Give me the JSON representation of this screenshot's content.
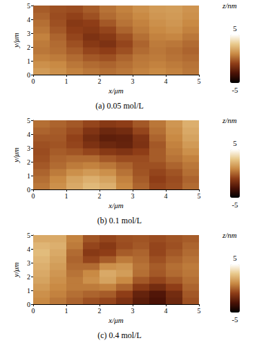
{
  "chart_data": [
    {
      "type": "heatmap",
      "title": "(a) 0.05 mol/L",
      "x_label": "x/μm",
      "y_label": "y/μm",
      "xlim": [
        0,
        5
      ],
      "ylim": [
        0,
        5
      ],
      "xticks": [
        0,
        1,
        2,
        3,
        4,
        5
      ],
      "yticks": [
        0,
        1,
        2,
        3,
        4,
        5
      ],
      "colorbar_label": "z/nm",
      "colorbar_range": [
        -5,
        5
      ],
      "colorbar_ticks": [
        -5,
        5
      ],
      "x": [
        0.25,
        0.75,
        1.25,
        1.75,
        2.25,
        2.75,
        3.25,
        3.75,
        4.25,
        4.75
      ],
      "y": [
        0.25,
        0.75,
        1.25,
        1.75,
        2.25,
        2.75,
        3.25,
        3.75,
        4.25,
        4.75
      ],
      "values": [
        [
          1.5,
          1.2,
          0.8,
          0.5,
          0.3,
          0.5,
          0.8,
          1.0,
          0.8,
          0.5
        ],
        [
          1.2,
          1.0,
          0.5,
          0.2,
          0.0,
          0.3,
          0.6,
          0.8,
          0.6,
          0.4
        ],
        [
          0.8,
          0.6,
          0.2,
          -0.3,
          -0.5,
          0.0,
          0.5,
          0.6,
          0.4,
          0.2
        ],
        [
          0.5,
          0.3,
          -0.2,
          -0.8,
          -1.0,
          -0.5,
          0.2,
          0.5,
          0.3,
          0.0
        ],
        [
          0.6,
          0.2,
          -0.5,
          -1.2,
          -1.5,
          -0.8,
          0.0,
          0.6,
          0.5,
          0.2
        ],
        [
          0.8,
          0.0,
          -0.8,
          -1.5,
          -1.2,
          -0.5,
          0.3,
          0.8,
          0.9,
          0.5
        ],
        [
          0.5,
          -0.3,
          -1.0,
          -1.2,
          -0.8,
          0.0,
          0.6,
          1.0,
          1.2,
          0.8
        ],
        [
          0.3,
          -0.5,
          -1.2,
          -1.0,
          -0.3,
          0.4,
          0.8,
          1.2,
          1.4,
          1.0
        ],
        [
          0.0,
          -0.6,
          -0.9,
          -0.5,
          0.2,
          0.6,
          1.0,
          1.4,
          1.5,
          1.2
        ],
        [
          -0.2,
          -0.5,
          -0.6,
          -0.2,
          0.4,
          0.8,
          1.2,
          1.5,
          1.6,
          1.3
        ]
      ]
    },
    {
      "type": "heatmap",
      "title": "(b) 0.1 mol/L",
      "x_label": "x/μm",
      "y_label": "y/μm",
      "xlim": [
        0,
        5
      ],
      "ylim": [
        0,
        5
      ],
      "xticks": [
        0,
        1,
        2,
        3,
        4,
        5
      ],
      "yticks": [
        0,
        1,
        2,
        3,
        4,
        5
      ],
      "colorbar_label": "z/nm",
      "colorbar_range": [
        -5,
        5
      ],
      "colorbar_ticks": [
        -5,
        5
      ],
      "x": [
        0.25,
        0.75,
        1.25,
        1.75,
        2.25,
        2.75,
        3.25,
        3.75,
        4.25,
        4.75
      ],
      "y": [
        0.25,
        0.75,
        1.25,
        1.75,
        2.25,
        2.75,
        3.25,
        3.75,
        4.25,
        4.75
      ],
      "values": [
        [
          0.5,
          1.2,
          2.0,
          2.5,
          2.2,
          1.0,
          0.0,
          -0.8,
          -0.5,
          0.2
        ],
        [
          0.3,
          1.0,
          1.8,
          2.2,
          1.8,
          0.8,
          -0.2,
          -1.0,
          -0.6,
          0.0
        ],
        [
          0.0,
          0.6,
          1.2,
          1.5,
          1.2,
          0.4,
          -0.4,
          -0.8,
          -0.4,
          0.3
        ],
        [
          -0.3,
          0.2,
          0.6,
          0.8,
          0.5,
          0.0,
          -0.5,
          -0.5,
          0.0,
          0.5
        ],
        [
          -0.5,
          0.0,
          0.2,
          0.2,
          -0.3,
          -0.6,
          -0.6,
          -0.2,
          0.4,
          0.8
        ],
        [
          -0.6,
          -0.2,
          -0.4,
          -0.8,
          -1.2,
          -1.4,
          -1.0,
          -0.2,
          0.6,
          1.2
        ],
        [
          -0.5,
          -0.4,
          -0.8,
          -1.5,
          -2.0,
          -2.2,
          -1.5,
          -0.3,
          0.8,
          1.5
        ],
        [
          -0.3,
          -0.3,
          -0.9,
          -1.8,
          -2.4,
          -2.3,
          -1.4,
          0.0,
          1.0,
          1.8
        ],
        [
          0.0,
          -0.2,
          -0.6,
          -1.4,
          -2.0,
          -1.8,
          -0.8,
          0.3,
          1.2,
          2.0
        ],
        [
          0.3,
          0.0,
          -0.3,
          -0.8,
          -1.2,
          -1.0,
          -0.3,
          0.5,
          1.4,
          2.2
        ]
      ]
    },
    {
      "type": "heatmap",
      "title": "(c) 0.4 mol/L",
      "x_label": "x/μm",
      "y_label": "y/μm",
      "xlim": [
        0,
        5
      ],
      "ylim": [
        0,
        5
      ],
      "xticks": [
        0,
        1,
        2,
        3,
        4,
        5
      ],
      "yticks": [
        0,
        1,
        2,
        3,
        4,
        5
      ],
      "colorbar_label": "z/nm",
      "colorbar_range": [
        -5,
        5
      ],
      "colorbar_ticks": [
        -5,
        5
      ],
      "x": [
        0.25,
        0.75,
        1.25,
        1.75,
        2.25,
        2.75,
        3.25,
        3.75,
        4.25,
        4.75
      ],
      "y": [
        0.25,
        0.75,
        1.25,
        1.75,
        2.25,
        2.75,
        3.25,
        3.75,
        4.25,
        4.75
      ],
      "values": [
        [
          1.0,
          0.5,
          0.0,
          -0.5,
          -0.8,
          -1.5,
          -2.5,
          -3.0,
          -2.0,
          -0.5
        ],
        [
          1.2,
          0.8,
          0.3,
          0.0,
          -0.2,
          -1.0,
          -2.2,
          -2.8,
          -1.8,
          -0.3
        ],
        [
          1.5,
          1.0,
          0.6,
          0.6,
          0.8,
          0.0,
          -1.2,
          -1.8,
          -1.0,
          0.0
        ],
        [
          1.8,
          1.2,
          0.6,
          1.2,
          1.8,
          1.0,
          -0.3,
          -0.8,
          -0.3,
          0.3
        ],
        [
          2.0,
          1.4,
          0.4,
          1.0,
          2.0,
          1.6,
          0.3,
          -0.3,
          0.2,
          0.5
        ],
        [
          2.2,
          1.6,
          0.2,
          0.2,
          1.2,
          1.4,
          0.4,
          -0.2,
          0.3,
          0.6
        ],
        [
          2.4,
          1.8,
          0.0,
          -0.8,
          -0.2,
          0.6,
          0.2,
          -0.5,
          0.0,
          0.4
        ],
        [
          2.6,
          2.0,
          0.2,
          -1.2,
          -1.0,
          -0.2,
          0.0,
          -0.8,
          -0.3,
          0.2
        ],
        [
          2.4,
          2.2,
          0.6,
          -0.8,
          -1.2,
          -0.6,
          -0.3,
          -0.8,
          -0.5,
          0.0
        ],
        [
          2.0,
          2.0,
          0.8,
          -0.4,
          -0.8,
          -0.5,
          -0.4,
          -0.6,
          -0.4,
          -0.2
        ]
      ]
    }
  ]
}
